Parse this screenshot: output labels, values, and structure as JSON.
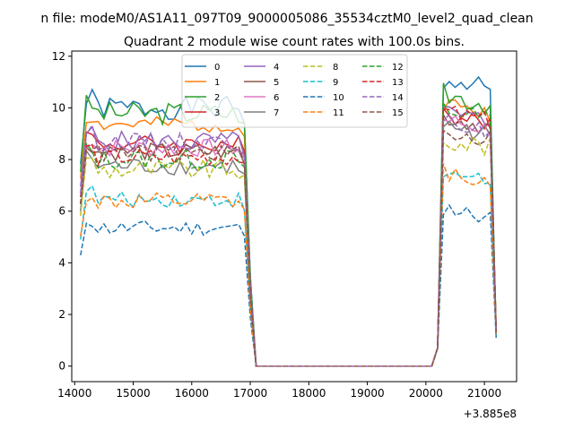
{
  "chart_data": {
    "type": "line",
    "suptitle": "n file: modeM0/AS1A11_097T09_9000005086_35534cztM0_level2_quad_clean",
    "title": "Quadrant 2 module wise count rates with 100.0s bins.",
    "xlabel": "",
    "ylabel": "",
    "x_offset_label": "+3.885e8",
    "xlim": [
      13950,
      21550
    ],
    "ylim": [
      -0.6,
      12.2
    ],
    "xticks": [
      14000,
      15000,
      16000,
      17000,
      18000,
      19000,
      20000,
      21000
    ],
    "yticks": [
      0,
      2,
      4,
      6,
      8,
      10,
      12
    ],
    "x_start": 14100,
    "x_step": 100,
    "n_points": 72,
    "drop": {
      "start_index": 28,
      "end_index": 30,
      "end_value": 0.0
    },
    "gap": {
      "start_index": 31,
      "end_index": 60,
      "value": 0.0
    },
    "rise_index": 61,
    "rise_value": 0.7,
    "fall_index": 71,
    "grid": false,
    "legend": {
      "position": "top-center",
      "columns": 4
    },
    "series": [
      {
        "name": "0",
        "color": "#1f77b4",
        "dash": "solid",
        "level1": 10.0,
        "level2": 11.1,
        "end": 1.1,
        "amp": 0.45,
        "seed": 1
      },
      {
        "name": "1",
        "color": "#ff7f0e",
        "dash": "solid",
        "level1": 9.35,
        "level2": 10.2,
        "end": 1.5,
        "amp": 0.3,
        "seed": 2
      },
      {
        "name": "2",
        "color": "#2ca02c",
        "dash": "solid",
        "level1": 9.8,
        "level2": 10.6,
        "end": 1.4,
        "amp": 0.45,
        "seed": 3
      },
      {
        "name": "3",
        "color": "#d62728",
        "dash": "solid",
        "level1": 8.6,
        "level2": 9.8,
        "end": 1.3,
        "amp": 0.35,
        "seed": 4
      },
      {
        "name": "4",
        "color": "#9467bd",
        "dash": "solid",
        "level1": 8.7,
        "level2": 9.9,
        "end": 1.3,
        "amp": 0.4,
        "seed": 5
      },
      {
        "name": "5",
        "color": "#8c564b",
        "dash": "solid",
        "level1": 8.3,
        "level2": 9.7,
        "end": 1.4,
        "amp": 0.35,
        "seed": 6
      },
      {
        "name": "6",
        "color": "#e377c2",
        "dash": "solid",
        "level1": 8.45,
        "level2": 9.6,
        "end": 1.4,
        "amp": 0.35,
        "seed": 7
      },
      {
        "name": "7",
        "color": "#7f7f7f",
        "dash": "solid",
        "level1": 7.75,
        "level2": 9.4,
        "end": 1.3,
        "amp": 0.35,
        "seed": 8
      },
      {
        "name": "8",
        "color": "#bcbd22",
        "dash": "dashed",
        "level1": 7.6,
        "level2": 8.9,
        "end": 1.3,
        "amp": 0.4,
        "seed": 9
      },
      {
        "name": "9",
        "color": "#17becf",
        "dash": "dashed",
        "level1": 6.45,
        "level2": 7.6,
        "end": 1.2,
        "amp": 0.3,
        "seed": 10
      },
      {
        "name": "10",
        "color": "#1f77b4",
        "dash": "dashed",
        "level1": 5.35,
        "level2": 6.2,
        "end": 1.1,
        "amp": 0.3,
        "seed": 11
      },
      {
        "name": "11",
        "color": "#ff7f0e",
        "dash": "dashed",
        "level1": 6.35,
        "level2": 7.6,
        "end": 1.2,
        "amp": 0.35,
        "seed": 12
      },
      {
        "name": "12",
        "color": "#2ca02c",
        "dash": "dashed",
        "level1": 8.0,
        "level2": 10.0,
        "end": 1.4,
        "amp": 0.4,
        "seed": 13
      },
      {
        "name": "13",
        "color": "#d62728",
        "dash": "dashed",
        "level1": 8.1,
        "level2": 9.9,
        "end": 1.4,
        "amp": 0.35,
        "seed": 14
      },
      {
        "name": "14",
        "color": "#9467bd",
        "dash": "dashed",
        "level1": 8.7,
        "level2": 9.5,
        "end": 1.3,
        "amp": 0.35,
        "seed": 15
      },
      {
        "name": "15",
        "color": "#8c564b",
        "dash": "dashed",
        "level1": 8.25,
        "level2": 9.2,
        "end": 1.3,
        "amp": 0.35,
        "seed": 16
      }
    ]
  }
}
